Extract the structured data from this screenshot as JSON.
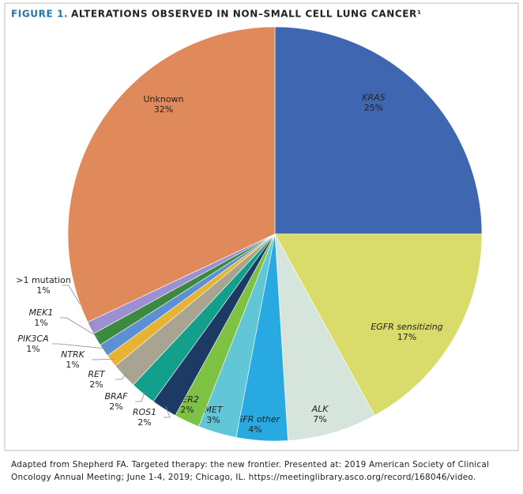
{
  "chart_data": {
    "type": "pie",
    "figure_label": "FIGURE 1.",
    "title": "ALTERATIONS OBSERVED IN NON–SMALL CELL LUNG CANCER¹",
    "categories": [
      "KRAS",
      "EGFR sensitizing",
      "ALK",
      "EGFR other",
      "MET",
      "HER2",
      "ROS1",
      "BRAF",
      "RET",
      "NTRK",
      "PIK3CA",
      "MEK1",
      ">1 mutation",
      "Unknown"
    ],
    "values": [
      25,
      17,
      7,
      4,
      3,
      2,
      2,
      2,
      2,
      1,
      1,
      1,
      1,
      32
    ],
    "value_labels": [
      "25%",
      "17%",
      "7%",
      "4%",
      "3%",
      "2%",
      "2%",
      "2%",
      "2%",
      "1%",
      "1%",
      "1%",
      "1%",
      "32%"
    ],
    "colors": [
      "#3f66b0",
      "#d9dc6b",
      "#d6e5dc",
      "#28a9e1",
      "#61c7d6",
      "#7dc243",
      "#1c3a63",
      "#12a08c",
      "#a9a391",
      "#e8b233",
      "#5d90d2",
      "#3c8a40",
      "#9c90d2",
      "#e08a5b"
    ],
    "source": "Adapted from Shepherd FA. Targeted therapy: the new frontier. Presented at: 2019 American Society of Clinical Oncology Annual Meeting; June 1-4, 2019; Chicago, IL. https://meetinglibrary.asco.org/record/168046/video."
  }
}
